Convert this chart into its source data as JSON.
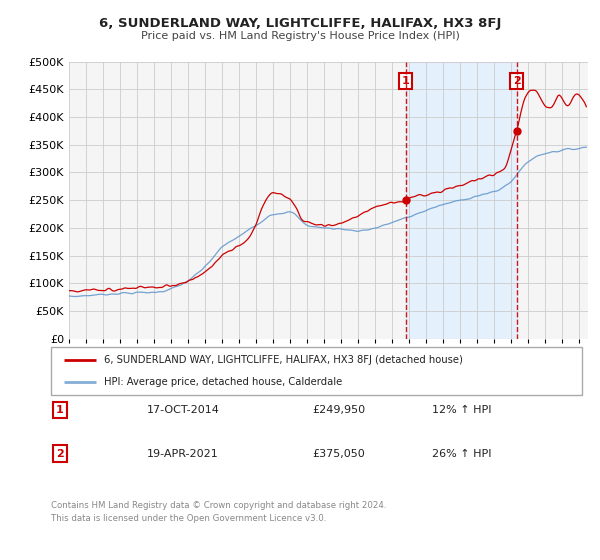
{
  "title": "6, SUNDERLAND WAY, LIGHTCLIFFE, HALIFAX, HX3 8FJ",
  "subtitle": "Price paid vs. HM Land Registry's House Price Index (HPI)",
  "legend_label1": "6, SUNDERLAND WAY, LIGHTCLIFFE, HALIFAX, HX3 8FJ (detached house)",
  "legend_label2": "HPI: Average price, detached house, Calderdale",
  "annotation1": {
    "num": "1",
    "date": "17-OCT-2014",
    "price": "£249,950",
    "pct": "12% ↑ HPI",
    "x_year": 2014.79
  },
  "annotation2": {
    "num": "2",
    "date": "19-APR-2021",
    "price": "£375,050",
    "pct": "26% ↑ HPI",
    "x_year": 2021.3
  },
  "ann1_price": 249950,
  "ann2_price": 375050,
  "footer": "Contains HM Land Registry data © Crown copyright and database right 2024.\nThis data is licensed under the Open Government Licence v3.0.",
  "ylim": [
    0,
    500000
  ],
  "yticks": [
    0,
    50000,
    100000,
    150000,
    200000,
    250000,
    300000,
    350000,
    400000,
    450000,
    500000
  ],
  "xmin": 1995,
  "xmax": 2025.5,
  "color_red": "#cc0000",
  "color_blue": "#6699cc",
  "color_shade": "#ddeeff",
  "background_plot": "#f5f5f5",
  "background_fig": "#ffffff",
  "grid_color": "#cccccc"
}
